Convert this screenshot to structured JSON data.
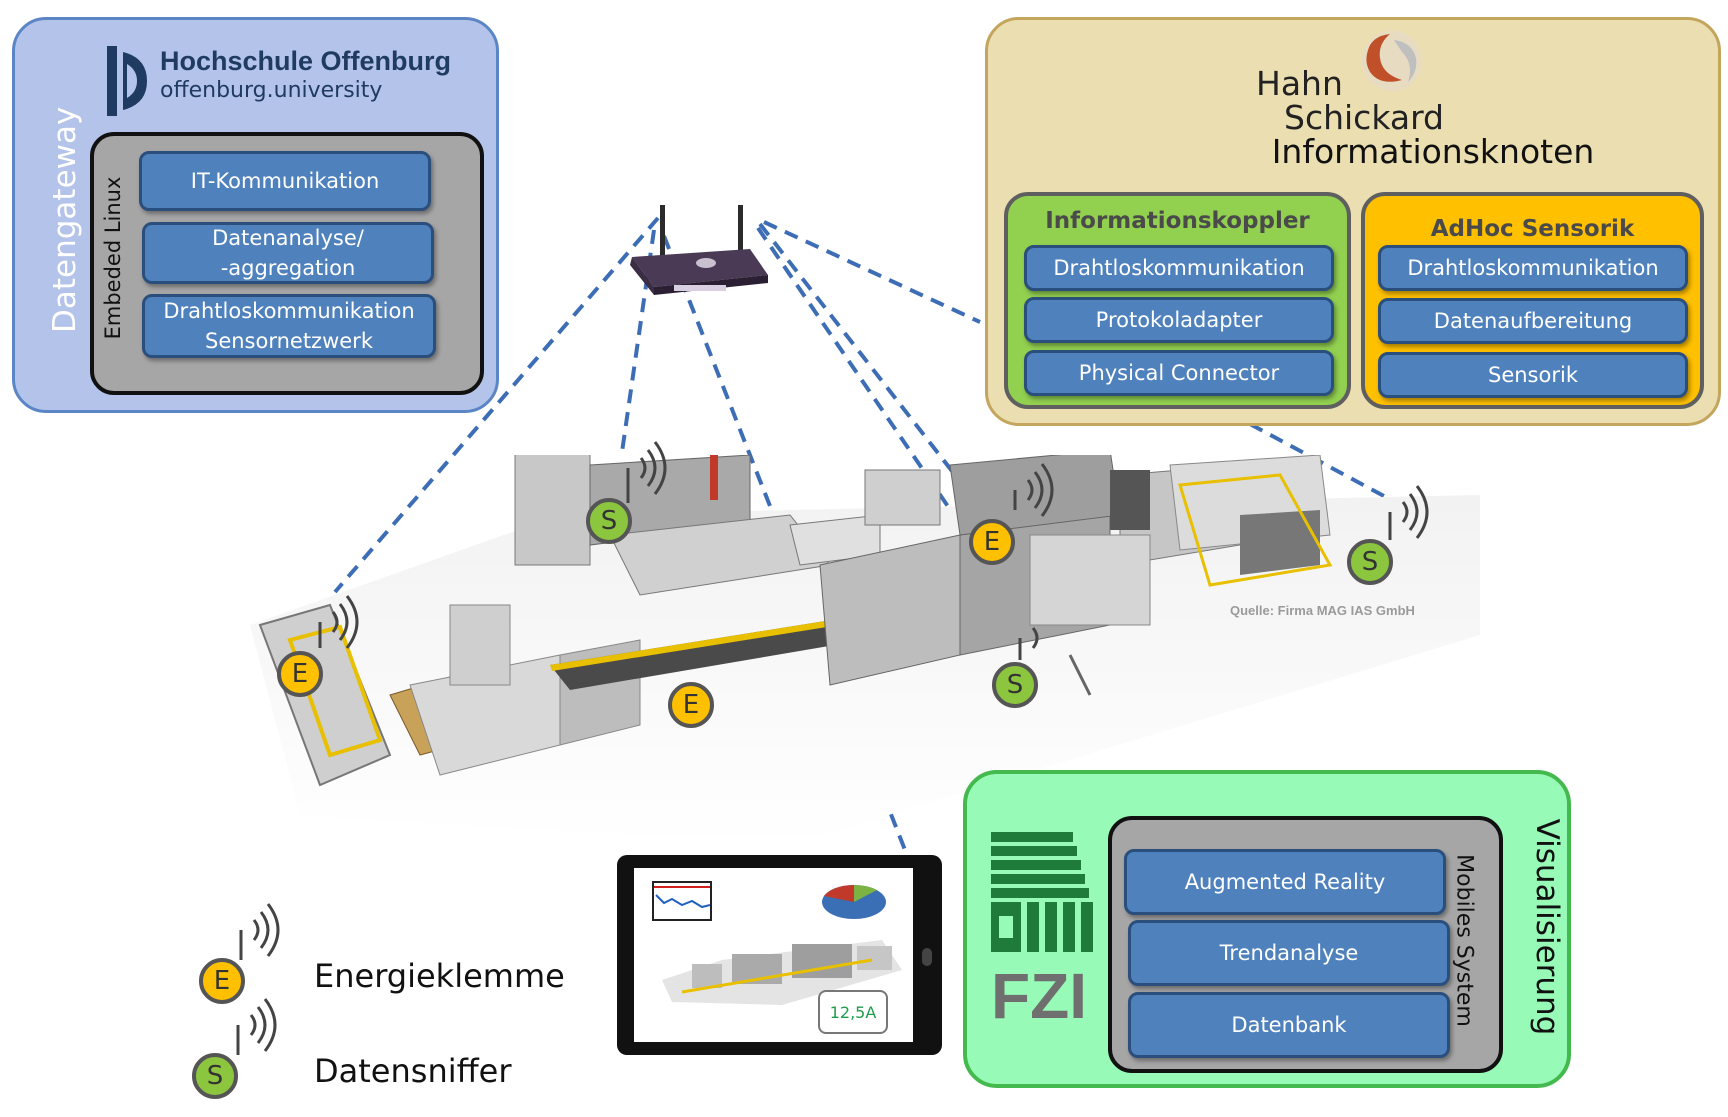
{
  "gateway": {
    "vertical_title": "Datengateway",
    "logo_name": "Hochschule Offenburg",
    "logo_sub": "offenburg.university",
    "linux_label": "Embeded Linux",
    "boxes": [
      "IT-Kommunikation",
      "Datenanalyse/\n-aggregation",
      "Drahtloskommunikation\nSensornetzwerk"
    ]
  },
  "info_node": {
    "logo_line1": "Hahn",
    "logo_line2": "Schickard",
    "title": "Informationsknoten",
    "coupler": {
      "title": "Informationskoppler",
      "boxes": [
        "Drahtloskommunikation",
        "Protokoladapter",
        "Physical Connector"
      ]
    },
    "adhoc": {
      "title": "AdHoc Sensorik",
      "boxes": [
        "Drahtloskommunikation",
        "Datenaufbereitung",
        "Sensorik"
      ]
    }
  },
  "visual": {
    "vertical_title": "Visualisierung",
    "mobile_label": "Mobiles System",
    "logo_text": "FZI",
    "boxes": [
      "Augmented Reality",
      "Trendanalyse",
      "Datenbank"
    ]
  },
  "tablet": {
    "reading": "12,5A"
  },
  "source_note": "Quelle: Firma MAG IAS GmbH",
  "nodes": {
    "energy_letter": "E",
    "sniffer_letter": "S"
  },
  "legend": {
    "energy_label": "Energieklemme",
    "sniffer_label": "Datensniffer"
  },
  "colors": {
    "gateway_bg": "#b4c3ea",
    "info_bg": "#ebdfb1",
    "coupler_bg": "#92d050",
    "adhoc_bg": "#ffc000",
    "visual_bg": "#97fbb7",
    "box_blue": "#4f81bd",
    "link_dash": "#3d6db5"
  }
}
